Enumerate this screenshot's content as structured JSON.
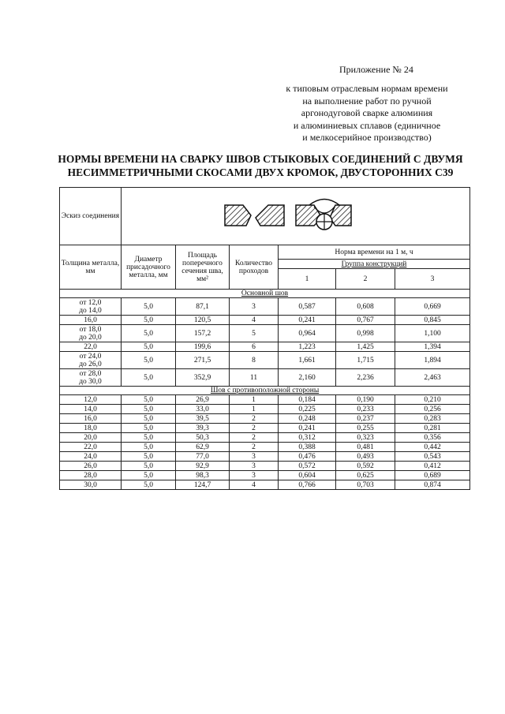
{
  "appendix": "Приложение № 24",
  "subtitle": [
    "к типовым отраслевым нормам времени",
    "на выполнение работ по ручной",
    "аргонодуговой сварке алюминия",
    "и алюминиевых сплавов (единичное",
    "и мелкосерийное производство)"
  ],
  "title": [
    "НОРМЫ ВРЕМЕНИ НА СВАРКУ ШВОВ СТЫКОВЫХ СОЕДИНЕНИЙ С ДВУМЯ",
    "НЕСИММЕТРИЧНЫМИ СКОСАМИ ДВУХ КРОМОК, ДВУСТОРОННИХ С39"
  ],
  "table": {
    "sketch_label": "Эскиз соединения",
    "headers": {
      "thickness": "Толщина металла, мм",
      "diameter": "Диаметр присадочного металла, мм",
      "area": "Площадь поперечного сечения шва, мм²",
      "passes": "Количество проходов",
      "norm": "Норма времени на 1 м, ч",
      "group": "Группа конструкций",
      "groups": [
        "1",
        "2",
        "3"
      ]
    },
    "sections": [
      {
        "label": "Основной шов",
        "rows": [
          [
            "от 12,0\nдо 14,0",
            "5,0",
            "87,1",
            "3",
            "0,587",
            "0,608",
            "0,669"
          ],
          [
            "16,0",
            "5,0",
            "120,5",
            "4",
            "0,241",
            "0,767",
            "0,845"
          ],
          [
            "от 18,0\nдо 20,0",
            "5,0",
            "157,2",
            "5",
            "0,964",
            "0,998",
            "1,100"
          ],
          [
            "22,0",
            "5,0",
            "199,6",
            "6",
            "1,223",
            "1,425",
            "1,394"
          ],
          [
            "от 24,0\nдо 26,0",
            "5,0",
            "271,5",
            "8",
            "1,661",
            "1,715",
            "1,894"
          ],
          [
            "от 28,0\nдо 30,0",
            "5,0",
            "352,9",
            "11",
            "2,160",
            "2,236",
            "2,463"
          ]
        ]
      },
      {
        "label": "Шов с противоположной стороны",
        "rows": [
          [
            "12,0",
            "5,0",
            "26,9",
            "1",
            "0,184",
            "0,190",
            "0,210"
          ],
          [
            "14,0",
            "5,0",
            "33,0",
            "1",
            "0,225",
            "0,233",
            "0,256"
          ],
          [
            "16,0",
            "5,0",
            "39,5",
            "2",
            "0,248",
            "0,237",
            "0,283"
          ],
          [
            "18,0",
            "5,0",
            "39,3",
            "2",
            "0,241",
            "0,255",
            "0,281"
          ],
          [
            "20,0",
            "5,0",
            "50,3",
            "2",
            "0,312",
            "0,323",
            "0,356"
          ],
          [
            "22,0",
            "5,0",
            "62,9",
            "2",
            "0,388",
            "0,481",
            "0,442"
          ],
          [
            "24,0",
            "5,0",
            "77,0",
            "3",
            "0,476",
            "0,493",
            "0,543"
          ],
          [
            "26,0",
            "5,0",
            "92,9",
            "3",
            "0,572",
            "0,592",
            "0,412"
          ],
          [
            "28,0",
            "5,0",
            "98,3",
            "3",
            "0,604",
            "0,625",
            "0,689"
          ],
          [
            "30,0",
            "5,0",
            "124,7",
            "4",
            "0,766",
            "0,703",
            "0,874"
          ]
        ]
      }
    ]
  }
}
